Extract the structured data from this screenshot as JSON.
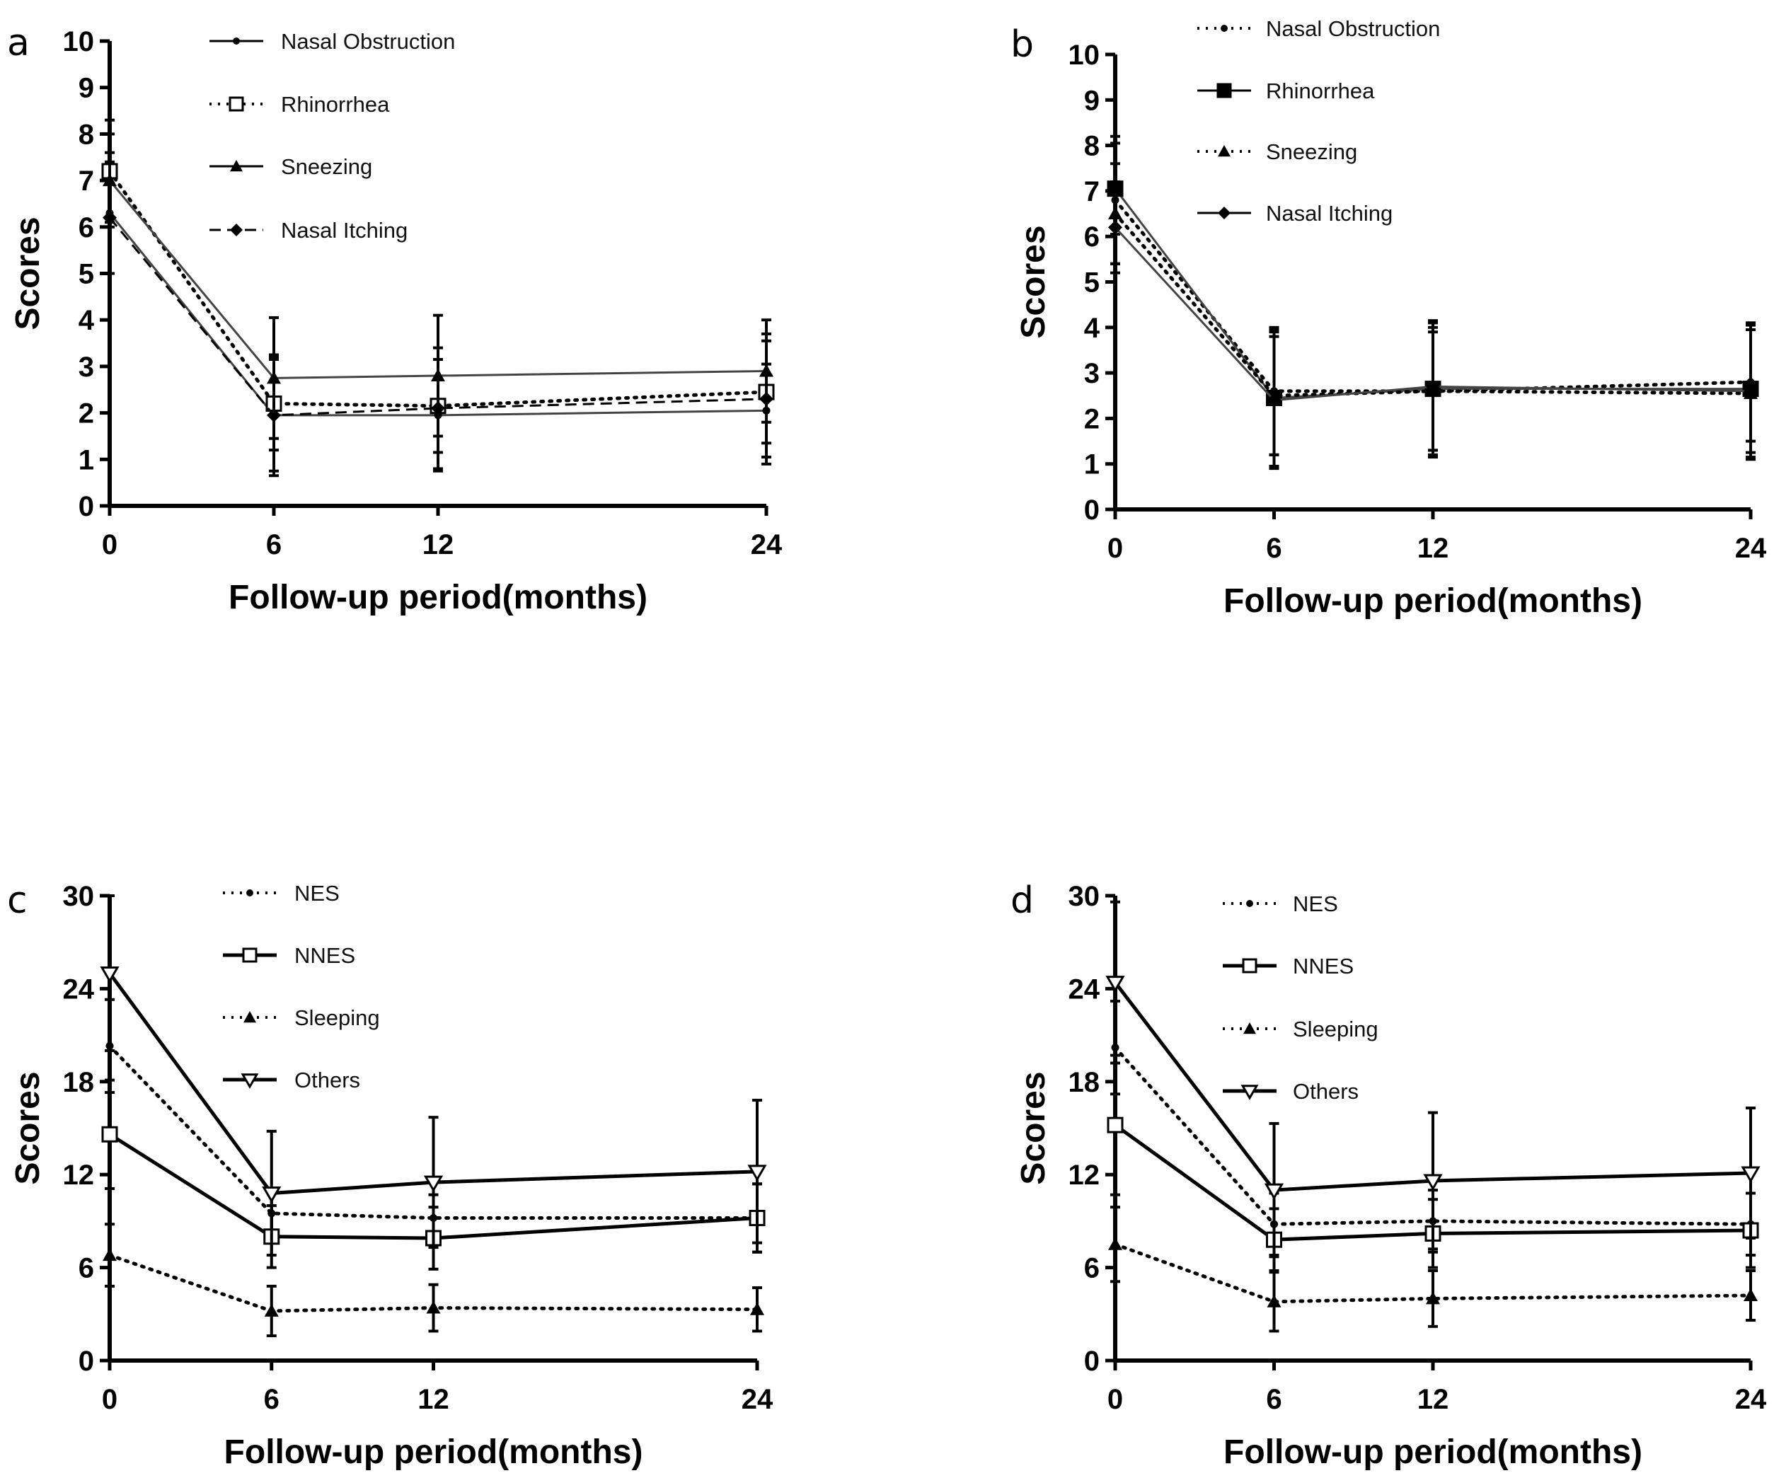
{
  "chart_data": [
    {
      "panel_label": "a",
      "type": "line",
      "xlabel": "Follow-up period(months)",
      "ylabel": "Scores",
      "x": [
        0,
        6,
        12,
        24
      ],
      "xticks": [
        0,
        6,
        12,
        24
      ],
      "yticks": [
        0,
        1,
        2,
        3,
        4,
        5,
        6,
        7,
        8,
        9,
        10
      ],
      "ylim": [
        0,
        10
      ],
      "legend_position": "top",
      "grid": false,
      "series": [
        {
          "name": "Nasal Obstruction",
          "line": "solid",
          "marker": "dot",
          "values": [
            6.3,
            1.95,
            1.95,
            2.05
          ],
          "error": [
            1.3,
            1.3,
            1.2,
            1.0
          ]
        },
        {
          "name": "Rhinorrhea",
          "line": "dotted",
          "marker": "square-open",
          "values": [
            7.2,
            2.2,
            2.15,
            2.45
          ],
          "error": [
            1.1,
            1.0,
            1.0,
            1.1
          ]
        },
        {
          "name": "Sneezing",
          "line": "solid",
          "marker": "triangle",
          "values": [
            7.0,
            2.75,
            2.8,
            2.9
          ],
          "error": [
            1.0,
            1.3,
            1.3,
            1.1
          ]
        },
        {
          "name": "Nasal Itching",
          "line": "dashed",
          "marker": "diamond",
          "values": [
            6.2,
            1.95,
            2.1,
            2.3
          ],
          "error": [
            1.2,
            1.2,
            1.3,
            1.4
          ]
        }
      ]
    },
    {
      "panel_label": "b",
      "type": "line",
      "xlabel": "Follow-up period(months)",
      "ylabel": "Scores",
      "x": [
        0,
        6,
        12,
        24
      ],
      "xticks": [
        0,
        6,
        12,
        24
      ],
      "yticks": [
        0,
        1,
        2,
        3,
        4,
        5,
        6,
        7,
        8,
        9,
        10
      ],
      "ylim": [
        0,
        10
      ],
      "legend_position": "top",
      "grid": false,
      "series": [
        {
          "name": "Nasal Obstruction",
          "line": "dotted",
          "marker": "dot",
          "values": [
            6.8,
            2.6,
            2.6,
            2.8
          ],
          "error": [
            1.4,
            1.4,
            1.4,
            1.3
          ]
        },
        {
          "name": "Rhinorrhea",
          "line": "solid",
          "marker": "square",
          "values": [
            7.05,
            2.45,
            2.65,
            2.65
          ],
          "error": [
            1.0,
            1.5,
            1.5,
            1.4
          ]
        },
        {
          "name": "Sneezing",
          "line": "dotted",
          "marker": "triangle",
          "values": [
            6.5,
            2.5,
            2.6,
            2.55
          ],
          "error": [
            1.1,
            1.3,
            1.3,
            1.4
          ]
        },
        {
          "name": "Nasal Itching",
          "line": "solid",
          "marker": "diamond",
          "values": [
            6.2,
            2.4,
            2.7,
            2.6
          ],
          "error": [
            1.0,
            1.5,
            1.4,
            1.5
          ]
        }
      ]
    },
    {
      "panel_label": "c",
      "type": "line",
      "xlabel": "Follow-up period(months)",
      "ylabel": "Scores",
      "x": [
        0,
        6,
        12,
        24
      ],
      "xticks": [
        0,
        6,
        12,
        24
      ],
      "yticks": [
        0,
        6,
        12,
        18,
        24,
        30
      ],
      "ylim": [
        0,
        30
      ],
      "legend_position": "top",
      "grid": false,
      "series": [
        {
          "name": "NES",
          "line": "dotted",
          "marker": "dot",
          "values": [
            20.3,
            9.5,
            9.2,
            9.2
          ],
          "error": [
            3.0,
            1.5,
            1.5,
            2.2
          ]
        },
        {
          "name": "NNES",
          "line": "solid",
          "marker": "square-open",
          "values": [
            14.6,
            8.0,
            7.9,
            9.2
          ],
          "error": [
            3.5,
            2.0,
            2.0,
            2.2
          ]
        },
        {
          "name": "Sleeping",
          "line": "dotted",
          "marker": "triangle",
          "values": [
            6.8,
            3.2,
            3.4,
            3.3
          ],
          "error": [
            2.0,
            1.6,
            1.5,
            1.4
          ]
        },
        {
          "name": "Others",
          "line": "solid",
          "marker": "triangle-down-open",
          "values": [
            25.0,
            10.8,
            11.5,
            12.2
          ],
          "error": [
            5.0,
            4.0,
            4.2,
            4.6
          ]
        }
      ]
    },
    {
      "panel_label": "d",
      "type": "line",
      "xlabel": "Follow-up period(months)",
      "ylabel": "Scores",
      "x": [
        0,
        6,
        12,
        24
      ],
      "xticks": [
        0,
        6,
        12,
        24
      ],
      "yticks": [
        0,
        6,
        12,
        18,
        24,
        30
      ],
      "ylim": [
        0,
        30
      ],
      "legend_position": "top",
      "grid": false,
      "series": [
        {
          "name": "NES",
          "line": "dotted",
          "marker": "dot",
          "values": [
            20.2,
            8.8,
            9.0,
            8.8
          ],
          "error": [
            3.0,
            2.0,
            2.0,
            2.0
          ]
        },
        {
          "name": "NNES",
          "line": "solid",
          "marker": "square-open",
          "values": [
            15.2,
            7.8,
            8.2,
            8.4
          ],
          "error": [
            4.5,
            2.0,
            2.2,
            2.4
          ]
        },
        {
          "name": "Sleeping",
          "line": "dotted",
          "marker": "triangle",
          "values": [
            7.5,
            3.8,
            4.0,
            4.2
          ],
          "error": [
            2.4,
            1.9,
            1.8,
            1.6
          ]
        },
        {
          "name": "Others",
          "line": "solid",
          "marker": "triangle-down-open",
          "values": [
            24.4,
            11.0,
            11.6,
            12.1
          ],
          "error": [
            5.2,
            4.3,
            4.4,
            4.2
          ]
        }
      ]
    }
  ]
}
